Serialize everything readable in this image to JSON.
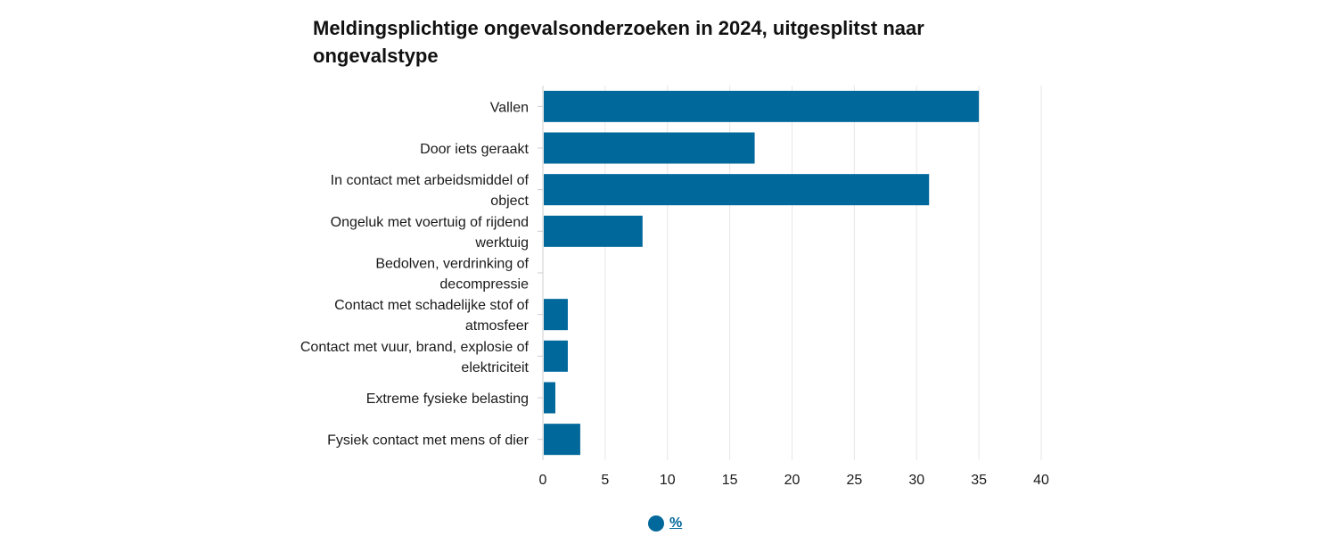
{
  "chart_data": {
    "type": "bar",
    "orientation": "horizontal",
    "title": "Meldingsplichtige ongevalsonderzoeken in 2024, uitgesplitst naar ongevalstype",
    "categories": [
      [
        "Vallen"
      ],
      [
        "Door iets geraakt"
      ],
      [
        "In contact met arbeidsmiddel of",
        "object"
      ],
      [
        "Ongeluk met voertuig of rijdend",
        "werktuig"
      ],
      [
        "Bedolven, verdrinking of",
        "decompressie"
      ],
      [
        "Contact met schadelijke stof of",
        "atmosfeer"
      ],
      [
        "Contact met vuur, brand, explosie of",
        "elektriciteit"
      ],
      [
        "Extreme fysieke belasting"
      ],
      [
        "Fysiek contact met mens of dier"
      ]
    ],
    "series": [
      {
        "name": "%",
        "color": "#01689b",
        "values": [
          35,
          17,
          31,
          8,
          0,
          2,
          2,
          1,
          3
        ]
      }
    ],
    "xlim": [
      0,
      40
    ],
    "xticks": [
      "0",
      "5",
      "10",
      "15",
      "20",
      "25",
      "30",
      "35",
      "40"
    ],
    "grid": true,
    "legend": "bottom-center"
  },
  "legend": {
    "label": "%",
    "color": "#01689b"
  }
}
